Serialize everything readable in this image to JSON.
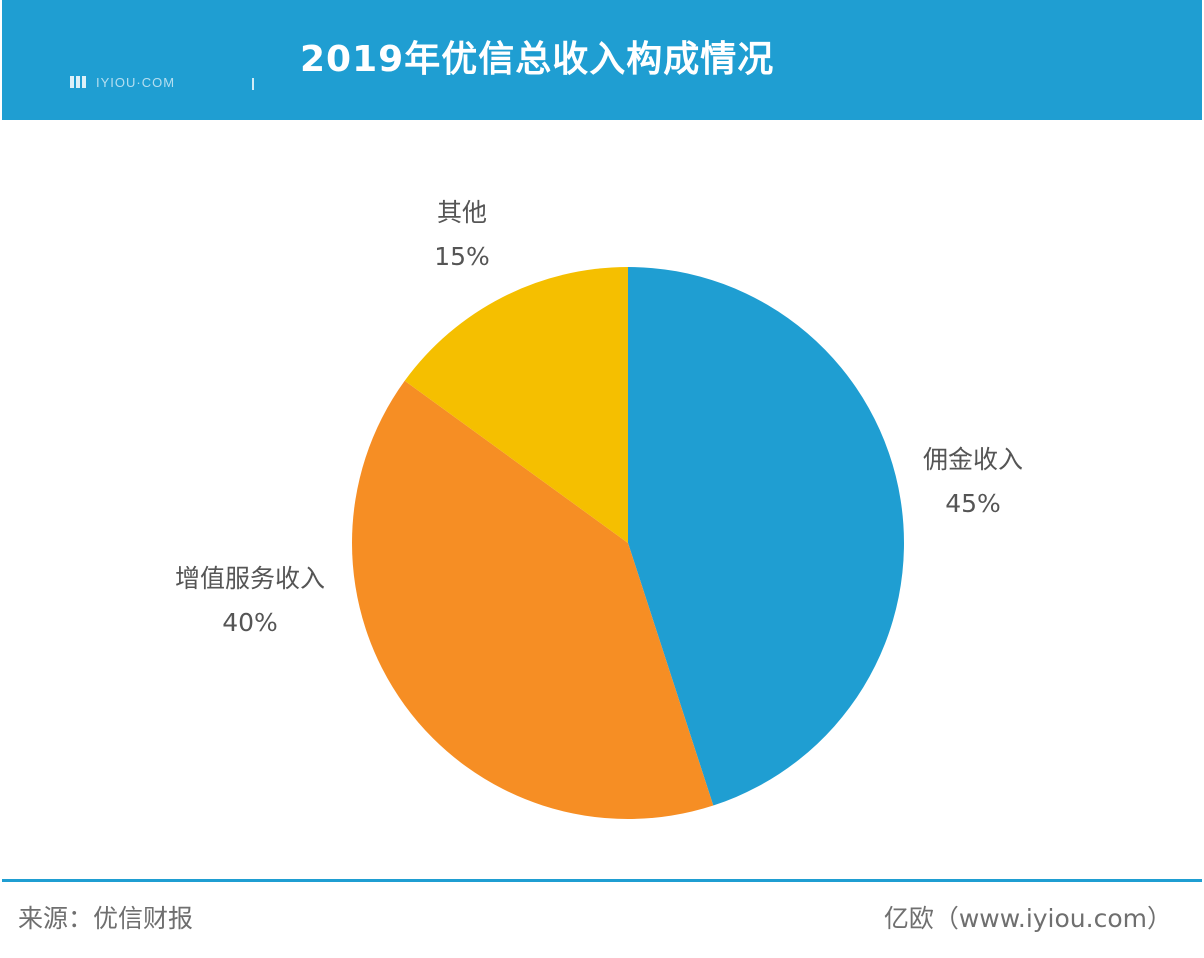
{
  "header": {
    "title": "2019年优信总收入构成情况",
    "logo_text": "IYIOU·COM",
    "background_color": "#1f9ed2"
  },
  "chart_data": {
    "type": "pie",
    "title": "2019年优信总收入构成情况",
    "slices": [
      {
        "label": "佣金收入",
        "value": 45,
        "value_label": "45%",
        "color": "#1f9ed2"
      },
      {
        "label": "增值服务收入",
        "value": 40,
        "value_label": "40%",
        "color": "#f68e24"
      },
      {
        "label": "其他",
        "value": 15,
        "value_label": "15%",
        "color": "#f5bf00"
      }
    ],
    "start_angle": "12 o'clock, clockwise"
  },
  "footer": {
    "source": "来源：优信财报",
    "credit": "亿欧（www.iyiou.com）",
    "line_color": "#1f9ed2"
  }
}
